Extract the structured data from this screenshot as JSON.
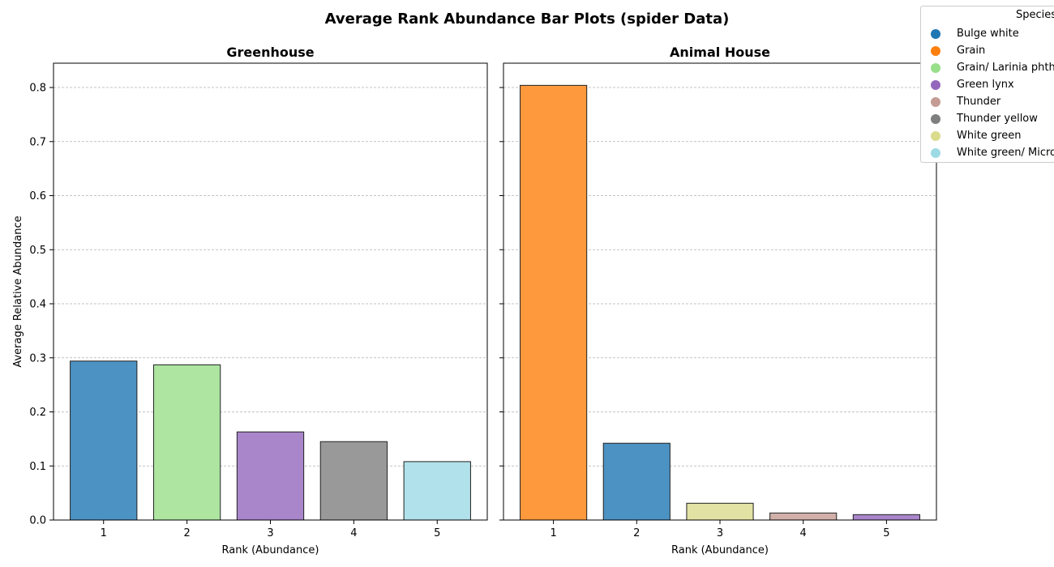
{
  "figure": {
    "suptitle": "Average Rank Abundance Bar Plots (spider Data)"
  },
  "legend": {
    "title": "Species",
    "placement": "top-right, outside plot area",
    "items": [
      {
        "label": "Bulge white",
        "color": "#1f77b4"
      },
      {
        "label": "Grain",
        "color": "#ff7f0e"
      },
      {
        "label": "Grain/ Larinia phthisica",
        "color": "#98df8a"
      },
      {
        "label": "Green lynx",
        "color": "#9467bd"
      },
      {
        "label": "Thunder",
        "color": "#c49c94"
      },
      {
        "label": "Thunder yellow",
        "color": "#7f7f7f"
      },
      {
        "label": "White green",
        "color": "#dbdb8d"
      },
      {
        "label": "White green/ Microlinyphia",
        "color": "#9edae5"
      }
    ]
  },
  "chart_data": [
    {
      "type": "bar",
      "title": "Greenhouse",
      "xlabel": "Rank (Abundance)",
      "ylabel": "Average Relative Abundance",
      "categories": [
        "1",
        "2",
        "3",
        "4",
        "5"
      ],
      "values": [
        0.294,
        0.287,
        0.163,
        0.145,
        0.108
      ],
      "species": [
        "Bulge white",
        "Grain/ Larinia phthisica",
        "Green lynx",
        "Thunder yellow",
        "White green/ Microlinyphia"
      ],
      "ylim": [
        0,
        0.845
      ],
      "yticks": [
        "0.0",
        "0.1",
        "0.2",
        "0.3",
        "0.4",
        "0.5",
        "0.6",
        "0.7",
        "0.8"
      ],
      "grid": "y, dashed"
    },
    {
      "type": "bar",
      "title": "Animal House",
      "xlabel": "Rank (Abundance)",
      "ylabel": "",
      "categories": [
        "1",
        "2",
        "3",
        "4",
        "5"
      ],
      "values": [
        0.804,
        0.142,
        0.031,
        0.013,
        0.01
      ],
      "species": [
        "Grain",
        "Bulge white",
        "White green",
        "Thunder",
        "Green lynx"
      ],
      "ylim": [
        0,
        0.845
      ],
      "yticks": [
        "0.0",
        "0.1",
        "0.2",
        "0.3",
        "0.4",
        "0.5",
        "0.6",
        "0.7",
        "0.8"
      ],
      "grid": "y, dashed"
    }
  ]
}
